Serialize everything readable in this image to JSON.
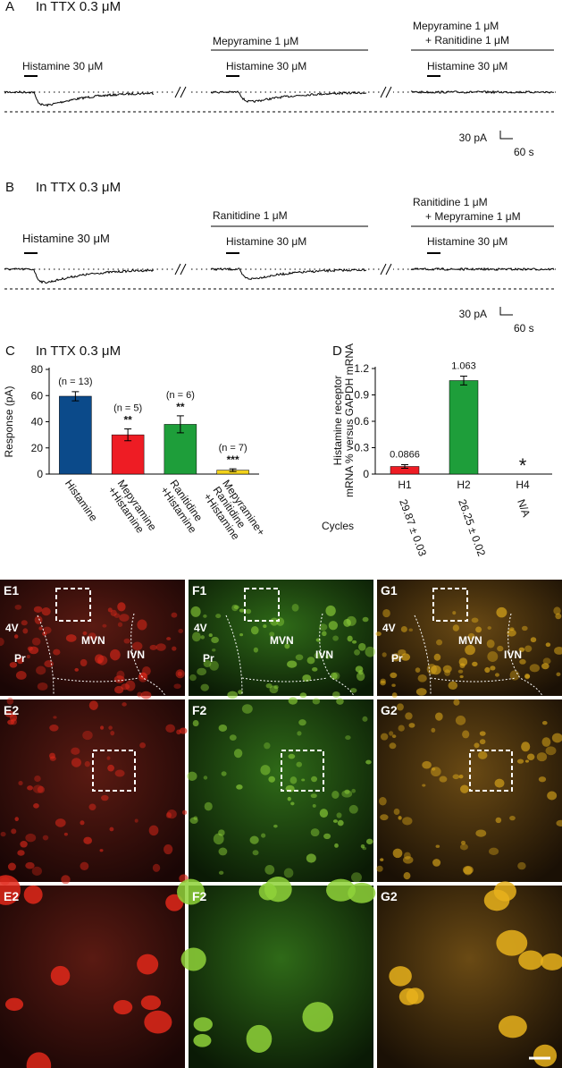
{
  "panel_a": {
    "letter": "A",
    "condition": "In TTX 0.3 μM",
    "drug_1": "Mepyramine 1 μM",
    "drug_2_line_1": "Mepyramine 1 μM",
    "drug_2_line_2": "+ Ranitidine 1 μM",
    "stimulus": [
      "Histamine 30 μM",
      "Histamine 30 μM",
      "Histamine 30 μM"
    ],
    "scale_y": "30 pA",
    "scale_x": "60 s"
  },
  "panel_b": {
    "letter": "B",
    "condition": "In TTX 0.3 μM",
    "drug_1": "Ranitidine 1 μM",
    "drug_2_line_1": "Ranitidine 1 μM",
    "drug_2_line_2": "+ Mepyramine 1 μM",
    "stimulus": [
      "Histamine 30 μM",
      "Histamine 30 μM",
      "Histamine 30 μM"
    ],
    "scale_y": "30 pA",
    "scale_x": "60 s"
  },
  "chart_data": [
    {
      "type": "bar",
      "panel": "C",
      "title": "In TTX 0.3 μM",
      "ylabel": "Response (pA)",
      "categories": [
        [
          "Histamine"
        ],
        [
          "Mepyramine",
          "+Histamine"
        ],
        [
          "Ranitidine",
          "+Histamine"
        ],
        [
          "Mepyramine+",
          "Ranitidine",
          "+Histamine"
        ]
      ],
      "values": [
        59.5,
        30,
        38,
        3
      ],
      "errors": [
        3.5,
        4.5,
        6.5,
        1
      ],
      "colors": [
        "#0b4a8a",
        "#ee1c24",
        "#1e9e3a",
        "#f2d21b"
      ],
      "n_labels": [
        "(n = 13)",
        "(n = 5)",
        "(n = 6)",
        "(n = 7)"
      ],
      "significance": [
        null,
        "**",
        "**",
        "***"
      ],
      "ylim": [
        0,
        80
      ],
      "yticks": [
        0,
        20,
        40,
        60,
        80
      ]
    },
    {
      "type": "bar",
      "panel": "D",
      "ylabel": [
        "Histamine  receptor",
        "mRNA % versus GAPDH mRNA"
      ],
      "categories": [
        "H1",
        "H2",
        "H4"
      ],
      "values": [
        0.0866,
        1.063,
        0
      ],
      "errors": [
        0.02,
        0.05,
        null
      ],
      "value_labels": [
        "0.0866",
        "1.063",
        null
      ],
      "not_detected_marker": "*",
      "colors": [
        "#ee1c24",
        "#1e9e3a",
        "#888888"
      ],
      "cycles_label": "Cycles",
      "cycles": [
        "29.87 ± 0.03",
        "26.25 ± 0.02",
        "N/A"
      ],
      "ylim": [
        0,
        1.2
      ],
      "yticks": [
        0,
        0.3,
        0.6,
        0.9,
        1.2
      ]
    }
  ],
  "images": {
    "tiles": [
      "E1",
      "F1",
      "G1",
      "E2",
      "F2",
      "G2",
      "E2",
      "F2",
      "G2"
    ],
    "regions": [
      "4V",
      "MVN",
      "Pr",
      "IVN"
    ]
  }
}
